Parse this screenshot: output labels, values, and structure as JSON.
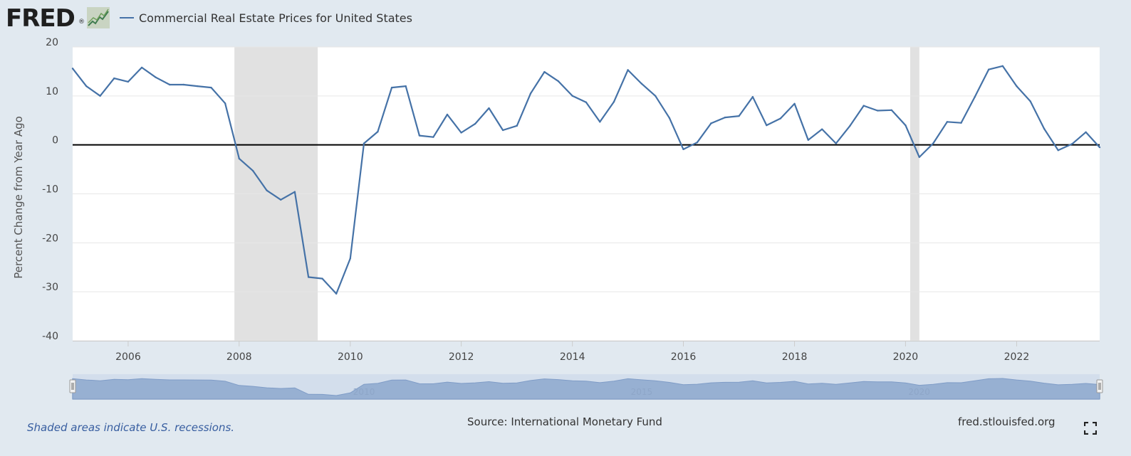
{
  "logo_text": "FRED",
  "logo_reg": "®",
  "legend_label": "Commercial Real Estate Prices for United States",
  "footer": {
    "note": "Shaded areas indicate U.S. recessions.",
    "source": "Source: International Monetary Fund",
    "site": "fred.stlouisfed.org"
  },
  "colors": {
    "series": "#4572a7",
    "recession": "#e1e1e1",
    "background": "#e1e9f0",
    "navigator_fill": "#7f9dc7",
    "navigator_mask": "#c5d3e8"
  },
  "icons": [
    "fred-logo-graph-icon",
    "fullscreen-icon"
  ],
  "chart_data": {
    "type": "line",
    "title": "",
    "xlabel": "",
    "ylabel": "Percent Change from Year Ago",
    "ylim": [
      -40,
      20
    ],
    "yticks": [
      20,
      10,
      0,
      -10,
      -20,
      -30,
      -40
    ],
    "xlim": [
      "2005-01-01",
      "2023-07-01"
    ],
    "xticks": [
      "2006",
      "2008",
      "2010",
      "2012",
      "2014",
      "2016",
      "2018",
      "2020",
      "2022"
    ],
    "grid": true,
    "legend": "top-left",
    "recessions": [
      [
        "2007-12-01",
        "2009-06-01"
      ],
      [
        "2020-02-01",
        "2020-04-01"
      ]
    ],
    "navigator_labels": [
      "2010",
      "2015",
      "2020"
    ],
    "series": [
      {
        "name": "Commercial Real Estate Prices for United States",
        "x": [
          "2005-01-01",
          "2005-04-01",
          "2005-07-01",
          "2005-10-01",
          "2006-01-01",
          "2006-04-01",
          "2006-07-01",
          "2006-10-01",
          "2007-01-01",
          "2007-04-01",
          "2007-07-01",
          "2007-10-01",
          "2008-01-01",
          "2008-04-01",
          "2008-07-01",
          "2008-10-01",
          "2009-01-01",
          "2009-04-01",
          "2009-07-01",
          "2009-10-01",
          "2010-01-01",
          "2010-04-01",
          "2010-07-01",
          "2010-10-01",
          "2011-01-01",
          "2011-04-01",
          "2011-07-01",
          "2011-10-01",
          "2012-01-01",
          "2012-04-01",
          "2012-07-01",
          "2012-10-01",
          "2013-01-01",
          "2013-04-01",
          "2013-07-01",
          "2013-10-01",
          "2014-01-01",
          "2014-04-01",
          "2014-07-01",
          "2014-10-01",
          "2015-01-01",
          "2015-04-01",
          "2015-07-01",
          "2015-10-01",
          "2016-01-01",
          "2016-04-01",
          "2016-07-01",
          "2016-10-01",
          "2017-01-01",
          "2017-04-01",
          "2017-07-01",
          "2017-10-01",
          "2018-01-01",
          "2018-04-01",
          "2018-07-01",
          "2018-10-01",
          "2019-01-01",
          "2019-04-01",
          "2019-07-01",
          "2019-10-01",
          "2020-01-01",
          "2020-04-01",
          "2020-07-01",
          "2020-10-01",
          "2021-01-01",
          "2021-04-01",
          "2021-07-01",
          "2021-10-01",
          "2022-01-01",
          "2022-04-01",
          "2022-07-01",
          "2022-10-01",
          "2023-01-01",
          "2023-04-01",
          "2023-07-01"
        ],
        "values": [
          15.6,
          12.0,
          10.0,
          13.6,
          12.9,
          15.8,
          13.8,
          12.3,
          12.3,
          12.0,
          11.7,
          8.5,
          -2.8,
          -5.3,
          -9.3,
          -11.2,
          -9.6,
          -27.0,
          -27.3,
          -30.4,
          -23.2,
          0.3,
          2.7,
          11.7,
          12.0,
          1.9,
          1.6,
          6.2,
          2.5,
          4.3,
          7.5,
          3.0,
          3.9,
          10.5,
          14.9,
          13.0,
          10.0,
          8.7,
          4.7,
          8.8,
          15.3,
          12.5,
          10.0,
          5.5,
          -0.9,
          0.5,
          4.4,
          5.6,
          5.9,
          9.8,
          4.0,
          5.4,
          8.4,
          1.0,
          3.2,
          0.3,
          3.9,
          8.0,
          7.0,
          7.1,
          4.0,
          -2.5,
          0.3,
          4.7,
          4.5,
          9.8,
          15.4,
          16.1,
          12.0,
          8.9,
          3.3,
          -1.1,
          0.2,
          2.6,
          -0.5
        ]
      }
    ]
  }
}
